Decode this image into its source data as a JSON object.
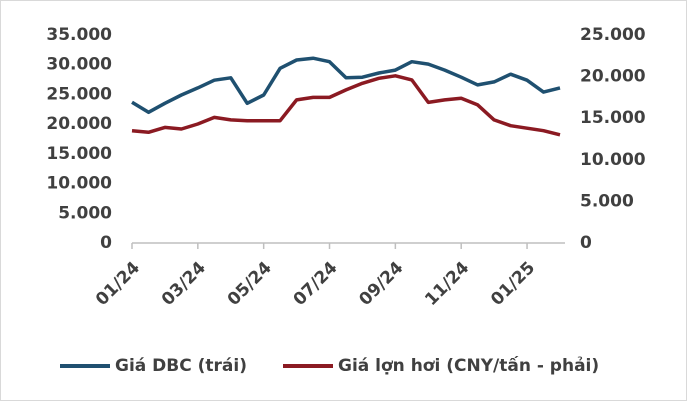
{
  "chart_data": {
    "type": "line",
    "categories": [
      "01/24",
      null,
      null,
      null,
      "03/24",
      null,
      null,
      null,
      "05/24",
      null,
      null,
      null,
      "07/24",
      null,
      null,
      null,
      "09/24",
      null,
      null,
      null,
      "11/24",
      null,
      null,
      null,
      "01/25",
      null,
      null
    ],
    "series": [
      {
        "name": "Giá DBC (trái)",
        "color": "#1f5070",
        "axis": "y",
        "values": [
          23700,
          22000,
          23500,
          24900,
          26100,
          27400,
          27800,
          23500,
          24900,
          29400,
          30800,
          31100,
          30500,
          27800,
          27900,
          28600,
          29100,
          30500,
          30100,
          29100,
          27900,
          26600,
          27100,
          28400,
          27400,
          25400,
          26100
        ]
      },
      {
        "name": "Giá lợn hơi (CNY/tấn - phải)",
        "color": "#8b1a22",
        "axis": "y2",
        "values": [
          13500,
          13300,
          13900,
          13700,
          14300,
          15100,
          14800,
          14700,
          14700,
          14700,
          17200,
          17500,
          17500,
          18400,
          19200,
          19800,
          20100,
          19600,
          16900,
          17200,
          17400,
          16600,
          14800,
          14100,
          13800,
          13500,
          13000
        ]
      }
    ],
    "ylim": [
      0,
      35000
    ],
    "yticks": [
      0,
      {
        "value": 5000,
        "label": "5.000"
      },
      {
        "value": 10000,
        "label": "10.000"
      },
      {
        "value": 15000,
        "label": "15.000"
      },
      {
        "value": 20000,
        "label": "20.000"
      },
      {
        "value": 25000,
        "label": "25.000"
      },
      {
        "value": 30000,
        "label": "30.000"
      },
      {
        "value": 35000,
        "label": "35.000"
      }
    ],
    "y2lim": [
      0,
      25000
    ],
    "y2ticks": [
      0,
      {
        "value": 5000,
        "label": "5.000"
      },
      {
        "value": 10000,
        "label": "10.000"
      },
      {
        "value": 15000,
        "label": "15.000"
      },
      {
        "value": 20000,
        "label": "20.000"
      },
      {
        "value": 25000,
        "label": "25.000"
      }
    ],
    "legend": "bottom"
  }
}
